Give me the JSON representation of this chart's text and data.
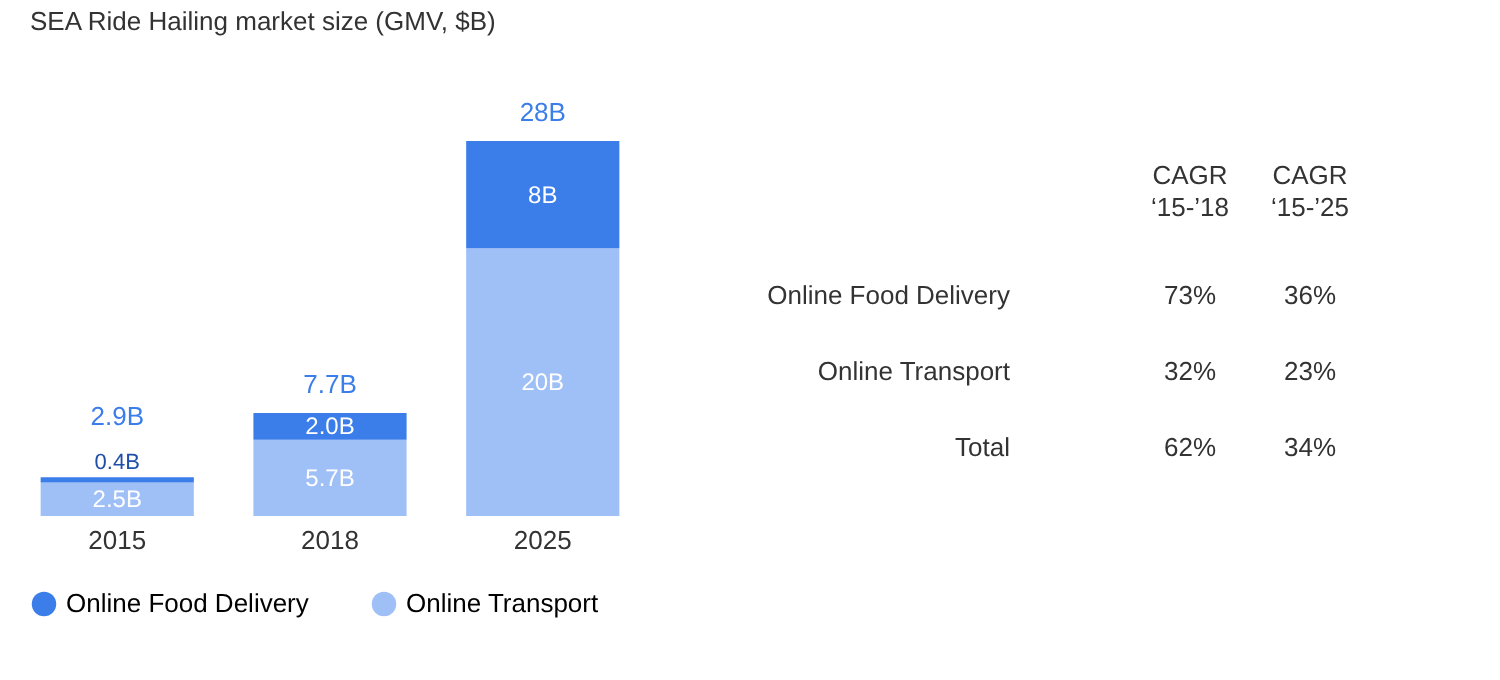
{
  "chart_data": [
    {
      "type": "bar",
      "title": "SEA Ride Hailing market size (GMV, $B)",
      "categories": [
        "2015",
        "2018",
        "2025"
      ],
      "stacked": true,
      "legend": "bottom",
      "series": [
        {
          "name": "Online Transport",
          "color": "#9fbff7",
          "values": [
            2.5,
            5.7,
            20
          ],
          "value_labels": [
            "2.5B",
            "5.7B",
            "20B"
          ]
        },
        {
          "name": "Online Food Delivery",
          "color": "#3b7de9",
          "values": [
            0.4,
            2.0,
            8
          ],
          "value_labels": [
            "0.4B",
            "2.0B",
            "8B"
          ]
        }
      ],
      "totals": [
        "2.9B",
        "7.7B",
        "28B"
      ]
    },
    {
      "type": "other",
      "annotations": [
        "CAGR\n‘15-’18",
        "CAGR\n‘15-’25",
        "Online Food Delivery",
        "73%",
        "36%",
        "Online Transport",
        "32%",
        "23%",
        "Total",
        "62%",
        "34%"
      ]
    }
  ]
}
